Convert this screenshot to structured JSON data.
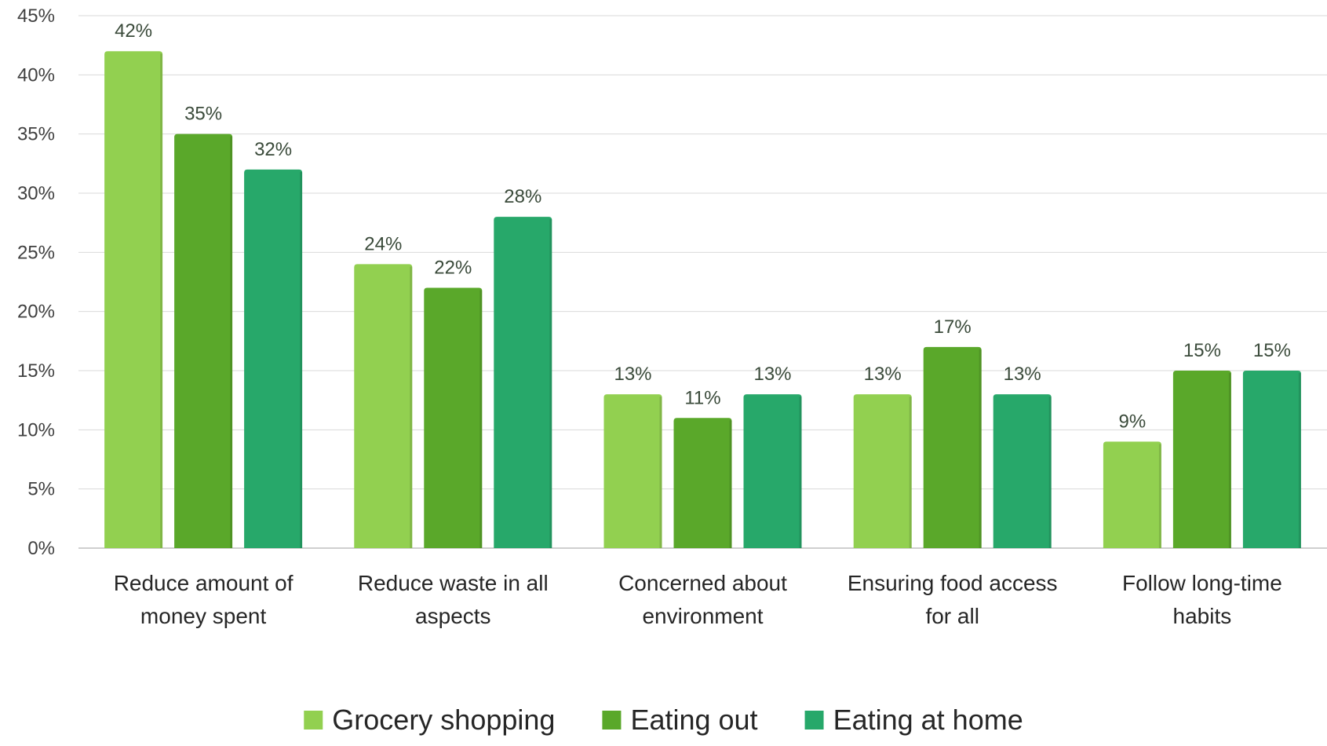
{
  "chart_data": {
    "type": "bar",
    "categories": [
      [
        "Reduce amount of",
        "money spent"
      ],
      [
        "Reduce waste in all",
        "aspects"
      ],
      [
        "Concerned about",
        "environment"
      ],
      [
        "Ensuring food access",
        "for all"
      ],
      [
        "Follow long-time",
        "habits"
      ]
    ],
    "series": [
      {
        "name": "Grocery shopping",
        "values": [
          42,
          24,
          13,
          13,
          9
        ],
        "color": "#92d050"
      },
      {
        "name": "Eating out",
        "values": [
          35,
          22,
          11,
          17,
          15
        ],
        "color": "#5aa82a"
      },
      {
        "name": "Eating at home",
        "values": [
          32,
          28,
          13,
          13,
          15
        ],
        "color": "#27a86a"
      }
    ],
    "value_suffix": "%",
    "y_ticks": [
      "0%",
      "5%",
      "10%",
      "15%",
      "20%",
      "25%",
      "30%",
      "35%",
      "40%",
      "45%"
    ],
    "ylim": [
      0,
      45
    ],
    "y_step": 5,
    "grid": true,
    "legend_position": "bottom"
  }
}
